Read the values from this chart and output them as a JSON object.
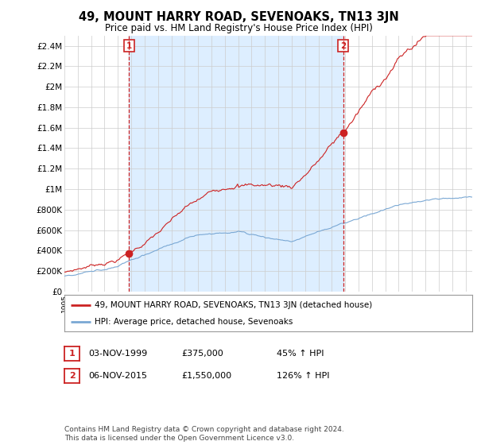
{
  "title": "49, MOUNT HARRY ROAD, SEVENOAKS, TN13 3JN",
  "subtitle": "Price paid vs. HM Land Registry's House Price Index (HPI)",
  "ylim": [
    0,
    2500000
  ],
  "yticks": [
    0,
    200000,
    400000,
    600000,
    800000,
    1000000,
    1200000,
    1400000,
    1600000,
    1800000,
    2000000,
    2200000,
    2400000
  ],
  "ytick_labels": [
    "£0",
    "£200K",
    "£400K",
    "£600K",
    "£800K",
    "£1M",
    "£1.2M",
    "£1.4M",
    "£1.6M",
    "£1.8M",
    "£2M",
    "£2.2M",
    "£2.4M"
  ],
  "sale1": {
    "date_num": 1999.84,
    "price": 375000,
    "label": "1",
    "date_str": "03-NOV-1999",
    "pct": "45%"
  },
  "sale2": {
    "date_num": 2015.84,
    "price": 1550000,
    "label": "2",
    "date_str": "06-NOV-2015",
    "pct": "126%"
  },
  "hpi_color": "#7aa8d4",
  "price_color": "#cc2222",
  "shade_color": "#ddeeff",
  "legend_label1": "49, MOUNT HARRY ROAD, SEVENOAKS, TN13 3JN (detached house)",
  "legend_label2": "HPI: Average price, detached house, Sevenoaks",
  "footnote": "Contains HM Land Registry data © Crown copyright and database right 2024.\nThis data is licensed under the Open Government Licence v3.0.",
  "table_row1": [
    "1",
    "03-NOV-1999",
    "£375,000",
    "45% ↑ HPI"
  ],
  "table_row2": [
    "2",
    "06-NOV-2015",
    "£1,550,000",
    "126% ↑ HPI"
  ],
  "background_color": "#ffffff",
  "grid_color": "#cccccc",
  "xlim": [
    1995,
    2025.5
  ]
}
